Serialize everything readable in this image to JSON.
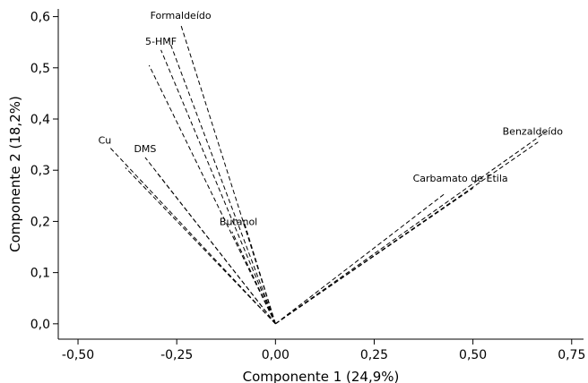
{
  "chart_data": {
    "type": "line",
    "xlabel": "Componente 1 (24,9%)",
    "ylabel": "Componente 2 (18,2%)",
    "xlim": [
      -0.55,
      0.78
    ],
    "ylim": [
      -0.03,
      0.615
    ],
    "grid": false,
    "legend": "none",
    "x_ticks": [
      "-0,50",
      "-0,25",
      "0,00",
      "0,25",
      "0,50",
      "0,75"
    ],
    "x_tick_values": [
      -0.5,
      -0.25,
      0.0,
      0.25,
      0.5,
      0.75
    ],
    "y_ticks": [
      "0,0",
      "0,1",
      "0,2",
      "0,3",
      "0,4",
      "0,5",
      "0,6"
    ],
    "y_tick_values": [
      0.0,
      0.1,
      0.2,
      0.3,
      0.4,
      0.5,
      0.6
    ],
    "origin": [
      0.0,
      0.0
    ],
    "points": [
      {
        "label": "Formaldeído",
        "x": -0.24,
        "y": 0.585
      },
      {
        "label": "5-HMF",
        "x": -0.29,
        "y": 0.535
      },
      {
        "label": "Cu",
        "x": -0.42,
        "y": 0.345
      },
      {
        "label": "DMS",
        "x": -0.33,
        "y": 0.325
      },
      {
        "label": "Butanol",
        "x": -0.08,
        "y": 0.2
      },
      {
        "label": "Carbamato de Etila",
        "x": 0.5,
        "y": 0.265
      },
      {
        "label": "Benzaldeído",
        "x": 0.665,
        "y": 0.355
      }
    ],
    "ghost_offsets": [
      {
        "label": "Formaldeído",
        "dx": -0.03,
        "dy": -0.03
      },
      {
        "label": "5-HMF",
        "dx": -0.03,
        "dy": -0.03
      },
      {
        "label": "Cu",
        "dx": 0.04,
        "dy": -0.04
      },
      {
        "label": "DMS",
        "dx": 0.03,
        "dy": -0.03
      },
      {
        "label": "Butanol",
        "dx": -0.03,
        "dy": -0.02
      },
      {
        "label": "Carbamato de Etila",
        "dx": -0.07,
        "dy": -0.01
      },
      {
        "label": "Benzaldeído",
        "dx": 0.02,
        "dy": 0.02
      }
    ]
  }
}
